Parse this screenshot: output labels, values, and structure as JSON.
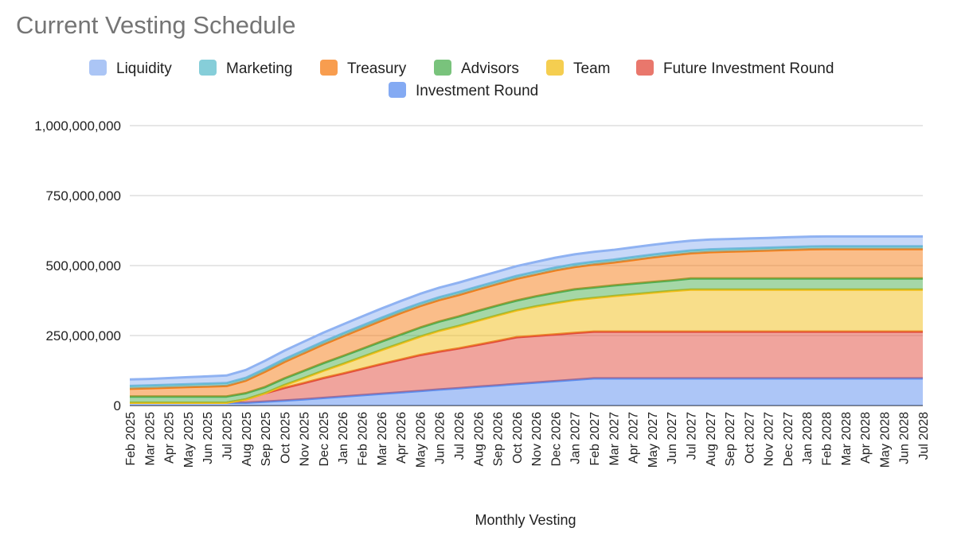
{
  "chart_data": {
    "type": "area",
    "stacked": true,
    "title": "Current Vesting Schedule",
    "xlabel": "Monthly Vesting",
    "ylabel": "",
    "ylim": [
      0,
      1000000000
    ],
    "yticks": [
      0,
      250000000,
      500000000,
      750000000,
      1000000000
    ],
    "ytick_labels": [
      "0",
      "250,000,000",
      "500,000,000",
      "750,000,000",
      "1,000,000,000"
    ],
    "grid": true,
    "legend_position": "top",
    "categories": [
      "Feb 2025",
      "Mar 2025",
      "Apr 2025",
      "May 2025",
      "Jun 2025",
      "Jul 2025",
      "Aug 2025",
      "Sep 2025",
      "Oct 2025",
      "Nov 2025",
      "Dec 2025",
      "Jan 2026",
      "Feb 2026",
      "Mar 2026",
      "Apr 2026",
      "May 2026",
      "Jun 2026",
      "Jul 2026",
      "Aug 2026",
      "Sep 2026",
      "Oct 2026",
      "Nov 2026",
      "Dec 2026",
      "Jan 2027",
      "Feb 2027",
      "Mar 2027",
      "Apr 2027",
      "May 2027",
      "Jun 2027",
      "Jul 2027",
      "Aug 2027",
      "Sep 2027",
      "Oct 2027",
      "Nov 2027",
      "Dec 2027",
      "Jan 2028",
      "Feb 2028",
      "Mar 2028",
      "Apr 2028",
      "May 2028",
      "Jun 2028",
      "Jul 2028"
    ],
    "legend_order": [
      "Liquidity",
      "Marketing",
      "Treasury",
      "Advisors",
      "Team",
      "Future Investment Round",
      "Investment Round"
    ],
    "series": [
      {
        "name": "Investment Round",
        "color": "#5b8def",
        "values": [
          10000000,
          10000000,
          10000000,
          10000000,
          10000000,
          10000000,
          10000000,
          14000000,
          18000000,
          22000000,
          27000000,
          32000000,
          37000000,
          42000000,
          47000000,
          52000000,
          57000000,
          62000000,
          67000000,
          72000000,
          77000000,
          82000000,
          87000000,
          92000000,
          97000000,
          97000000,
          97000000,
          97000000,
          97000000,
          97000000,
          97000000,
          97000000,
          97000000,
          97000000,
          97000000,
          97000000,
          97000000,
          97000000,
          97000000,
          97000000,
          97000000,
          97000000
        ]
      },
      {
        "name": "Future Investment Round",
        "color": "#e24a3b",
        "values": [
          0,
          0,
          0,
          0,
          0,
          0,
          12000000,
          30000000,
          45000000,
          58000000,
          71000000,
          82000000,
          94000000,
          106000000,
          117000000,
          128000000,
          136000000,
          142000000,
          150000000,
          158000000,
          167000000,
          167000000,
          167000000,
          167000000,
          167000000,
          167000000,
          167000000,
          167000000,
          167000000,
          167000000,
          167000000,
          167000000,
          167000000,
          167000000,
          167000000,
          167000000,
          167000000,
          167000000,
          167000000,
          167000000,
          167000000,
          167000000
        ]
      },
      {
        "name": "Team",
        "color": "#f2be16",
        "values": [
          0,
          0,
          0,
          0,
          0,
          0,
          0,
          0,
          10000000,
          18000000,
          26000000,
          34000000,
          42000000,
          50000000,
          58000000,
          66000000,
          74000000,
          80000000,
          86000000,
          92000000,
          96000000,
          105000000,
          112000000,
          118000000,
          120000000,
          127000000,
          133000000,
          139000000,
          145000000,
          150000000,
          150000000,
          150000000,
          150000000,
          150000000,
          150000000,
          150000000,
          150000000,
          150000000,
          150000000,
          150000000,
          150000000,
          150000000
        ]
      },
      {
        "name": "Advisors",
        "color": "#4caf50",
        "values": [
          22000000,
          22000000,
          22000000,
          22000000,
          22000000,
          22000000,
          22000000,
          22000000,
          24000000,
          26000000,
          27000000,
          28000000,
          29000000,
          30000000,
          31000000,
          32000000,
          33000000,
          34000000,
          35000000,
          35000000,
          35000000,
          36000000,
          37000000,
          38000000,
          38000000,
          38000000,
          38000000,
          38000000,
          38000000,
          40000000,
          40000000,
          40000000,
          40000000,
          40000000,
          40000000,
          40000000,
          40000000,
          40000000,
          40000000,
          40000000,
          40000000,
          40000000
        ]
      },
      {
        "name": "Treasury",
        "color": "#f57c14",
        "values": [
          28000000,
          30000000,
          32000000,
          34000000,
          36000000,
          38000000,
          45000000,
          55000000,
          59000000,
          63000000,
          67000000,
          71000000,
          73000000,
          75000000,
          77000000,
          77000000,
          77000000,
          77000000,
          77000000,
          77000000,
          78000000,
          78000000,
          80000000,
          80000000,
          82000000,
          82000000,
          85000000,
          88000000,
          90000000,
          90000000,
          94000000,
          96000000,
          98000000,
          100000000,
          102000000,
          104000000,
          105000000,
          105000000,
          105000000,
          105000000,
          105000000,
          105000000
        ]
      },
      {
        "name": "Marketing",
        "color": "#5ebdcc",
        "values": [
          10000000,
          10000000,
          10000000,
          10000000,
          10000000,
          10000000,
          10000000,
          10000000,
          10000000,
          10000000,
          10000000,
          10000000,
          10000000,
          10000000,
          10000000,
          10000000,
          10000000,
          10000000,
          10000000,
          10000000,
          10000000,
          10000000,
          10000000,
          10000000,
          10000000,
          10000000,
          10000000,
          10000000,
          10000000,
          10000000,
          10000000,
          10000000,
          10000000,
          10000000,
          10000000,
          10000000,
          10000000,
          10000000,
          10000000,
          10000000,
          10000000,
          10000000
        ]
      },
      {
        "name": "Liquidity",
        "color": "#8fb2f2",
        "values": [
          23000000,
          23000000,
          24000000,
          25000000,
          26000000,
          27000000,
          28000000,
          29000000,
          30000000,
          31000000,
          32000000,
          32000000,
          33000000,
          33000000,
          33000000,
          34000000,
          34000000,
          34000000,
          34000000,
          34000000,
          35000000,
          35000000,
          35000000,
          35000000,
          35000000,
          35000000,
          35000000,
          35000000,
          35000000,
          35000000,
          35000000,
          35000000,
          35000000,
          35000000,
          35000000,
          35000000,
          35000000,
          35000000,
          35000000,
          35000000,
          35000000,
          35000000
        ]
      }
    ]
  }
}
